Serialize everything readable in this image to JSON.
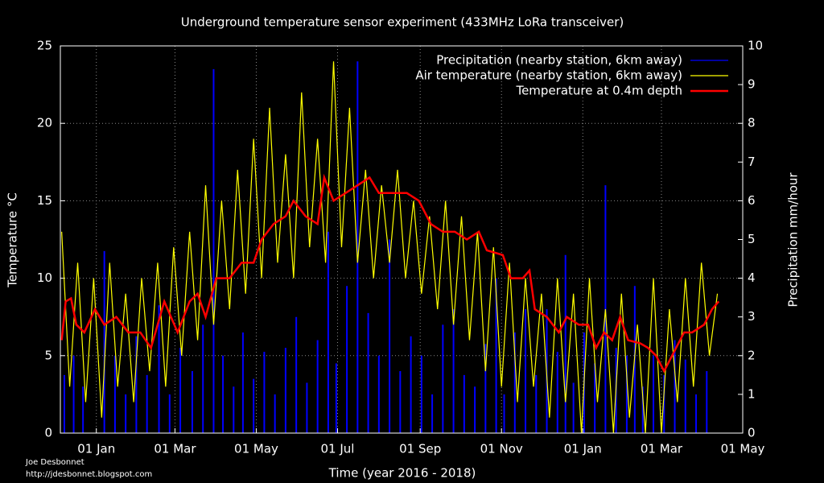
{
  "chart_data": {
    "type": "line",
    "title": "Underground temperature sensor experiment (433MHz LoRa transceiver)",
    "xlabel": "Time (year 2016 - 2018)",
    "ylabel": "Temperature °C",
    "y2label": "Precipitation mm/hour",
    "credit": [
      "Joe Desbonnet",
      "http://jdesbonnet.blogspot.com"
    ],
    "xlim": [
      -27,
      485
    ],
    "xticks": [
      {
        "value": 0,
        "label": "01 Jan"
      },
      {
        "value": 59,
        "label": "01 Mar"
      },
      {
        "value": 120,
        "label": "01 May"
      },
      {
        "value": 181,
        "label": "01 Jul"
      },
      {
        "value": 243,
        "label": "01 Sep"
      },
      {
        "value": 304,
        "label": "01 Nov"
      },
      {
        "value": 365,
        "label": "01 Jan"
      },
      {
        "value": 424,
        "label": "01 Mar"
      },
      {
        "value": 485,
        "label": "01 May"
      }
    ],
    "ylim": [
      0,
      25
    ],
    "yticks": [
      0,
      5,
      10,
      15,
      20,
      25
    ],
    "y2lim": [
      0,
      10
    ],
    "y2ticks": [
      0,
      1,
      2,
      3,
      4,
      5,
      6,
      7,
      8,
      9,
      10
    ],
    "grid": true,
    "legend": "top-right",
    "series": [
      {
        "name": "Precipitation (nearby station, 6km away)",
        "color": "#0000ff",
        "axis": "y2",
        "style": "impulses",
        "x": [
          -24,
          -17,
          -10,
          6,
          14,
          22,
          30,
          38,
          47,
          55,
          63,
          72,
          80,
          88,
          95,
          103,
          110,
          118,
          126,
          134,
          142,
          150,
          158,
          166,
          174,
          180,
          188,
          196,
          204,
          212,
          220,
          228,
          236,
          244,
          252,
          260,
          268,
          276,
          284,
          292,
          300,
          306,
          314,
          322,
          330,
          338,
          346,
          352,
          358,
          366,
          374,
          382,
          390,
          398,
          404,
          410,
          418,
          426,
          434,
          442,
          450,
          458
        ],
        "values": [
          1.5,
          2.0,
          1.2,
          4.7,
          2.0,
          1.0,
          2.5,
          1.5,
          3.3,
          1.0,
          2.2,
          1.6,
          2.8,
          9.4,
          2.0,
          1.2,
          2.6,
          1.4,
          2.1,
          1.0,
          2.2,
          3.0,
          1.3,
          2.4,
          5.2,
          1.8,
          3.8,
          9.6,
          3.1,
          2.0,
          5.0,
          1.6,
          2.5,
          2.0,
          1.0,
          2.8,
          3.2,
          1.5,
          1.2,
          2.3,
          4.0,
          1.0,
          2.6,
          3.2,
          1.5,
          3.2,
          2.1,
          4.6,
          1.3,
          2.6,
          1.8,
          6.4,
          2.2,
          2.0,
          3.8,
          1.2,
          2.0,
          1.5,
          2.4,
          1.9,
          1.0,
          1.6
        ]
      },
      {
        "name": "Air temperature (nearby station, 6km away)",
        "color": "#ffff00",
        "style": "line",
        "x": [
          -26,
          -20,
          -14,
          -8,
          -2,
          4,
          10,
          16,
          22,
          28,
          34,
          40,
          46,
          52,
          58,
          64,
          70,
          76,
          82,
          88,
          94,
          100,
          106,
          112,
          118,
          124,
          130,
          136,
          142,
          148,
          154,
          160,
          166,
          172,
          178,
          184,
          190,
          196,
          202,
          208,
          214,
          220,
          226,
          232,
          238,
          244,
          250,
          256,
          262,
          268,
          274,
          280,
          286,
          292,
          298,
          304,
          310,
          316,
          322,
          328,
          334,
          340,
          346,
          352,
          358,
          364,
          370,
          376,
          382,
          388,
          394,
          400,
          406,
          412,
          418,
          424,
          430,
          436,
          442,
          448,
          454,
          460,
          466
        ],
        "values": [
          13,
          3,
          11,
          2,
          10,
          1,
          11,
          3,
          9,
          2,
          10,
          4,
          11,
          3,
          12,
          5,
          13,
          6,
          16,
          7,
          15,
          8,
          17,
          9,
          19,
          10,
          21,
          11,
          18,
          10,
          22,
          12,
          19,
          11,
          24,
          12,
          21,
          11,
          17,
          10,
          16,
          11,
          17,
          10,
          15,
          9,
          14,
          8,
          15,
          7,
          14,
          6,
          13,
          4,
          12,
          3,
          11,
          2,
          10,
          3,
          9,
          1,
          10,
          2,
          9,
          0,
          10,
          2,
          8,
          0,
          9,
          1,
          7,
          0,
          10,
          0,
          8,
          2,
          10,
          3,
          11,
          5,
          9
        ]
      },
      {
        "name": "Temperature at 0.4m depth",
        "color": "#ff0000",
        "style": "line",
        "x": [
          -26,
          -23,
          -19,
          -15,
          -9,
          -1,
          6,
          15,
          24,
          33,
          41,
          51,
          61,
          70,
          76,
          82,
          90,
          100,
          109,
          118,
          124,
          133,
          142,
          148,
          157,
          166,
          171,
          178,
          187,
          196,
          205,
          212,
          224,
          233,
          242,
          251,
          260,
          269,
          278,
          287,
          293,
          305,
          311,
          320,
          325,
          329,
          338,
          347,
          353,
          362,
          369,
          375,
          381,
          387,
          393,
          399,
          408,
          414,
          420,
          426,
          432,
          441,
          447,
          456,
          462,
          467
        ],
        "values": [
          6.0,
          8.5,
          8.7,
          7.0,
          6.5,
          8.0,
          7.0,
          7.5,
          6.5,
          6.5,
          5.5,
          8.5,
          6.5,
          8.5,
          9.0,
          7.5,
          10.0,
          10.0,
          11.0,
          11.0,
          12.5,
          13.5,
          14.0,
          15.0,
          14.0,
          13.5,
          16.5,
          15.0,
          15.5,
          16.0,
          16.5,
          15.5,
          15.5,
          15.5,
          15.0,
          13.5,
          13.0,
          13.0,
          12.5,
          13.0,
          11.8,
          11.5,
          10.0,
          10.0,
          10.5,
          8.0,
          7.5,
          6.5,
          7.5,
          7.0,
          7.0,
          5.5,
          6.5,
          6.0,
          7.5,
          6.0,
          5.8,
          5.5,
          5.0,
          4.0,
          5.0,
          6.5,
          6.5,
          7.0,
          8.0,
          8.5
        ]
      }
    ]
  }
}
